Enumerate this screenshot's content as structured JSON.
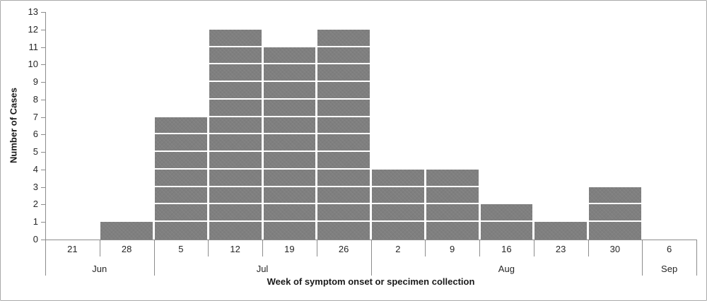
{
  "chart_data": {
    "type": "bar",
    "subtype": "epidemic-curve-histogram",
    "title": "",
    "xlabel": "Week of symptom onset or specimen collection",
    "ylabel": "Number of Cases",
    "categories": [
      "21",
      "28",
      "5",
      "12",
      "19",
      "26",
      "2",
      "9",
      "16",
      "23",
      "30",
      "6"
    ],
    "values": [
      0,
      1,
      7,
      12,
      11,
      12,
      4,
      4,
      2,
      1,
      3,
      0
    ],
    "month_groups": [
      {
        "label": "Jun",
        "span": 2
      },
      {
        "label": "Jul",
        "span": 4
      },
      {
        "label": "Aug",
        "span": 5
      },
      {
        "label": "Sep",
        "span": 1
      }
    ],
    "ylim": [
      0,
      13
    ],
    "yticks": [
      0,
      1,
      2,
      3,
      4,
      5,
      6,
      7,
      8,
      9,
      10,
      11,
      12,
      13
    ],
    "grid": false,
    "legend_position": "none"
  },
  "colors": {
    "bar_fill": "#7f7f7f",
    "cell_divider": "#ffffff",
    "axis_line": "#8c8c8c",
    "text": "#262626",
    "frame_border": "#a9a9a9",
    "background": "#ffffff"
  }
}
